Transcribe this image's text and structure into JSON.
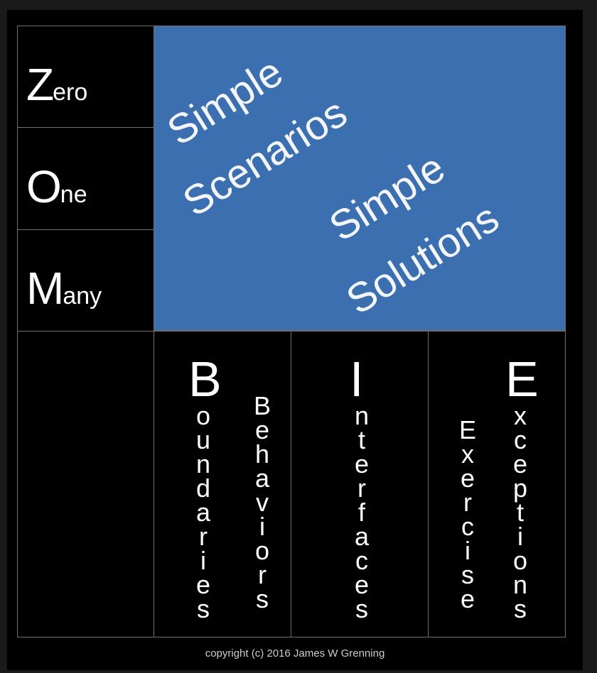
{
  "left_column": [
    {
      "initial": "Z",
      "rest": "ero"
    },
    {
      "initial": "O",
      "rest": "ne"
    },
    {
      "initial": "M",
      "rest": "any"
    }
  ],
  "blue_box": {
    "line1": "Simple",
    "line2": "Scenarios",
    "line3": "Simple",
    "line4": "Solutions"
  },
  "bie": {
    "b": {
      "letter": "B",
      "word1": "oundaries",
      "word2": "Behaviors"
    },
    "i": {
      "letter": "I",
      "word1": "nterfaces"
    },
    "e": {
      "letter": "E",
      "word1": "xceptions",
      "word2": "Exercise"
    }
  },
  "footer": "copyright (c) 2016 James W Grenning",
  "colors": {
    "blue": "#3b6fb0",
    "background": "#000000",
    "border": "#6e6e6e"
  }
}
